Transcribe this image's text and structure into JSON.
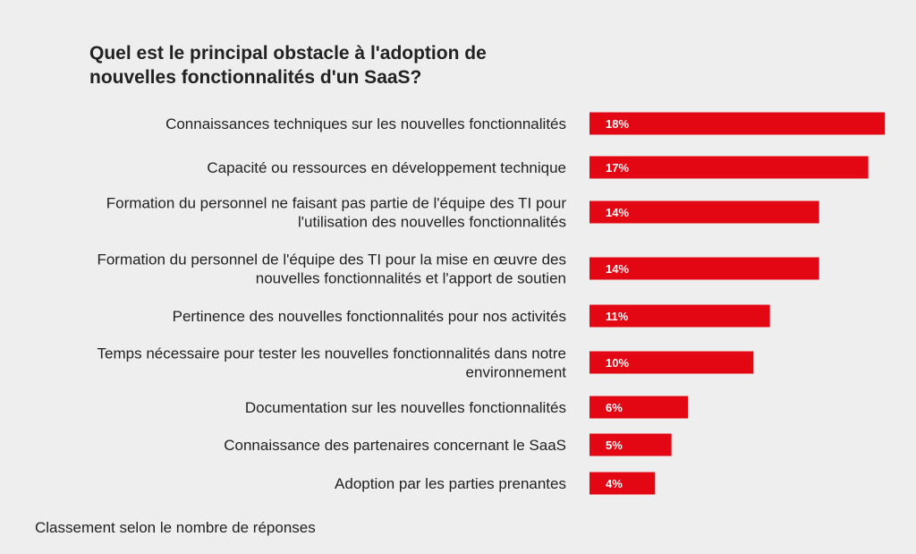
{
  "chart_data": {
    "type": "bar",
    "orientation": "horizontal",
    "title": "Quel est le principal obstacle à l'adoption de nouvelles fonctionnalités d'un SaaS?",
    "categories": [
      [
        "Connaissances techniques sur les nouvelles fonctionnalités"
      ],
      [
        "Capacité ou ressources en développement technique"
      ],
      [
        "Formation du personnel ne faisant pas partie de l'équipe des TI pour",
        "l'utilisation des nouvelles fonctionnalités"
      ],
      [
        "Formation du personnel de l'équipe des TI pour la mise en œuvre des",
        "nouvelles fonctionnalités et l'apport de soutien"
      ],
      [
        "Pertinence des nouvelles fonctionnalités pour nos activités"
      ],
      [
        "Temps nécessaire pour tester les nouvelles fonctionnalités dans notre",
        "environnement"
      ],
      [
        "Documentation sur les nouvelles fonctionnalités"
      ],
      [
        "Connaissance des partenaires concernant le SaaS"
      ],
      [
        "Adoption par les parties prenantes"
      ]
    ],
    "values": [
      18,
      17,
      14,
      14,
      11,
      10,
      6,
      5,
      4
    ],
    "value_labels": [
      "18%",
      "17%",
      "14%",
      "14%",
      "11%",
      "10%",
      "6%",
      "5%",
      "4%"
    ],
    "xlim": [
      0,
      18
    ],
    "grid": false,
    "legend": "none",
    "bar_color": "#e30613",
    "footnote": "Classement selon le nombre de réponses"
  }
}
